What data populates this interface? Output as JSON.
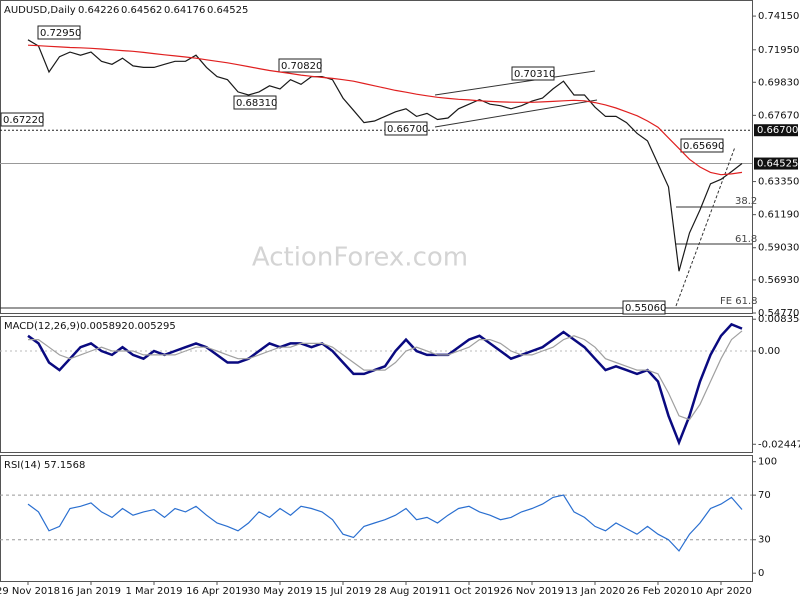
{
  "chart_data": [
    {
      "type": "line",
      "title": "AUDUSD,Daily",
      "last_bar": {
        "open": 0.64226,
        "high": 0.64562,
        "low": 0.64176
      },
      "watermark": "ActionForex.com",
      "categories": [
        "29 Nov 2018",
        null,
        null,
        null,
        null,
        null,
        "16 Jan 2019",
        null,
        null,
        null,
        null,
        null,
        "1 Mar 2019",
        null,
        null,
        null,
        null,
        null,
        "16 Apr 2019",
        null,
        null,
        null,
        null,
        null,
        "30 May 2019",
        null,
        null,
        null,
        null,
        null,
        "15 Jul 2019",
        null,
        null,
        null,
        null,
        null,
        "28 Aug 2019",
        null,
        null,
        null,
        null,
        null,
        "11 Oct 2019",
        null,
        null,
        null,
        null,
        null,
        "26 Nov 2019",
        null,
        null,
        null,
        null,
        null,
        "13 Jan 2020",
        null,
        null,
        null,
        null,
        null,
        "26 Feb 2020",
        null,
        null,
        null,
        null,
        null,
        "10 Apr 2020",
        null,
        null
      ],
      "series": [
        {
          "name": "AUDUSD",
          "color": "#1a1a1a",
          "values": [
            0.726,
            0.722,
            0.705,
            0.715,
            0.718,
            0.716,
            0.718,
            0.712,
            0.71,
            0.714,
            0.709,
            0.708,
            0.708,
            0.71,
            0.712,
            0.712,
            0.716,
            0.708,
            0.702,
            0.7,
            0.692,
            0.69,
            0.692,
            0.696,
            0.694,
            0.7,
            0.697,
            0.702,
            0.702,
            0.7,
            0.688,
            0.68,
            0.672,
            0.673,
            0.676,
            0.679,
            0.681,
            0.676,
            0.678,
            0.674,
            0.675,
            0.681,
            0.684,
            0.687,
            0.684,
            0.683,
            0.681,
            0.683,
            0.686,
            0.688,
            0.694,
            0.699,
            0.69,
            0.69,
            0.682,
            0.676,
            0.676,
            0.672,
            0.665,
            0.66,
            0.645,
            0.63,
            0.575,
            0.6,
            0.615,
            0.632,
            0.635,
            0.64,
            0.64525
          ]
        },
        {
          "name": "MA",
          "color": "#e02020",
          "values": [
            0.7225,
            0.7222,
            0.7218,
            0.7214,
            0.721,
            0.7208,
            0.7205,
            0.72,
            0.7195,
            0.719,
            0.7185,
            0.7178,
            0.717,
            0.7162,
            0.7155,
            0.7148,
            0.714,
            0.713,
            0.712,
            0.711,
            0.7098,
            0.7085,
            0.7072,
            0.706,
            0.705,
            0.704,
            0.703,
            0.7022,
            0.7015,
            0.7008,
            0.7,
            0.699,
            0.6975,
            0.696,
            0.6945,
            0.693,
            0.6918,
            0.6905,
            0.6895,
            0.6885,
            0.6878,
            0.6872,
            0.6868,
            0.6862,
            0.6858,
            0.6855,
            0.6853,
            0.6852,
            0.6852,
            0.6855,
            0.6858,
            0.6862,
            0.6865,
            0.6862,
            0.685,
            0.6835,
            0.6815,
            0.679,
            0.6765,
            0.673,
            0.669,
            0.662,
            0.655,
            0.648,
            0.643,
            0.6395,
            0.638,
            0.6385,
            0.6395
          ]
        }
      ],
      "ylim": [
        0.5477,
        0.752
      ],
      "yticks": [
        {
          "value": 0.7415,
          "label": "0.74150"
        },
        {
          "value": 0.7195,
          "label": "0.71950"
        },
        {
          "value": 0.6983,
          "label": "0.69830"
        },
        {
          "value": 0.6767,
          "label": "0.67670"
        },
        {
          "value": 0.6335,
          "label": "0.63350"
        },
        {
          "value": 0.6119,
          "label": "0.61190"
        },
        {
          "value": 0.5903,
          "label": "0.59030"
        },
        {
          "value": 0.5693,
          "label": "0.56930"
        },
        {
          "value": 0.5477,
          "label": "0.54770"
        }
      ],
      "markers": [
        {
          "value": 0.667,
          "label": "0.66700"
        }
      ],
      "annotations": [
        "0.72950",
        "0.67220",
        "0.70820",
        "0.68310",
        "0.66700",
        "0.70310",
        "0.65690",
        "0.55060",
        "38.2",
        "61.8",
        "FE 61.8"
      ]
    },
    {
      "type": "line",
      "title": "MACD(12,26,9)",
      "series": [
        {
          "name": "MACD",
          "color": "#0a0a80",
          "values": [
            0.004,
            0.002,
            -0.003,
            -0.005,
            -0.002,
            0.001,
            0.002,
            0.0,
            -0.001,
            0.001,
            -0.001,
            -0.002,
            0.0,
            -0.001,
            0.0,
            0.001,
            0.002,
            0.001,
            -0.001,
            -0.003,
            -0.003,
            -0.002,
            0.0,
            0.002,
            0.001,
            0.002,
            0.002,
            0.001,
            0.002,
            0.0,
            -0.003,
            -0.006,
            -0.006,
            -0.005,
            -0.004,
            0.0,
            0.003,
            0.0,
            -0.001,
            -0.001,
            -0.001,
            0.001,
            0.003,
            0.004,
            0.002,
            0.0,
            -0.002,
            -0.001,
            0.0,
            0.001,
            0.003,
            0.005,
            0.003,
            0.001,
            -0.002,
            -0.005,
            -0.004,
            -0.005,
            -0.006,
            -0.005,
            -0.008,
            -0.017,
            -0.024,
            -0.017,
            -0.008,
            -0.001,
            0.004,
            0.007,
            0.005892
          ]
        },
        {
          "name": "Signal",
          "color": "#a0a0a0",
          "values": [
            0.003,
            0.003,
            0.001,
            -0.001,
            -0.002,
            -0.001,
            0.0,
            0.001,
            0.0,
            0.0,
            0.0,
            -0.001,
            -0.001,
            -0.001,
            -0.001,
            0.0,
            0.001,
            0.001,
            0.0,
            -0.001,
            -0.002,
            -0.002,
            -0.001,
            0.0,
            0.001,
            0.001,
            0.002,
            0.002,
            0.002,
            0.001,
            -0.001,
            -0.003,
            -0.005,
            -0.005,
            -0.005,
            -0.003,
            0.0,
            0.001,
            0.0,
            -0.001,
            -0.001,
            0.0,
            0.001,
            0.003,
            0.003,
            0.002,
            0.0,
            -0.001,
            -0.001,
            0.0,
            0.001,
            0.003,
            0.004,
            0.003,
            0.001,
            -0.002,
            -0.003,
            -0.004,
            -0.005,
            -0.005,
            -0.006,
            -0.011,
            -0.017,
            -0.018,
            -0.014,
            -0.008,
            -0.002,
            0.003,
            0.005295
          ]
        }
      ],
      "ylim": [
        -0.0265,
        0.0092
      ],
      "yticks": [
        0.008354,
        {
          "value": 0,
          "label": "0.00"
        },
        -0.02447
      ]
    },
    {
      "type": "line",
      "title": "RSI(14)",
      "series": [
        {
          "name": "RSI",
          "color": "#2a6fd0",
          "values": [
            62,
            55,
            38,
            42,
            58,
            60,
            63,
            55,
            50,
            58,
            52,
            55,
            57,
            50,
            58,
            55,
            60,
            52,
            45,
            42,
            38,
            45,
            55,
            50,
            58,
            52,
            60,
            58,
            55,
            48,
            35,
            32,
            42,
            45,
            48,
            52,
            58,
            48,
            50,
            45,
            52,
            58,
            60,
            55,
            52,
            48,
            50,
            55,
            58,
            62,
            68,
            70,
            55,
            50,
            42,
            38,
            45,
            40,
            35,
            42,
            35,
            30,
            20,
            35,
            45,
            58,
            62,
            68,
            57.1568
          ]
        }
      ],
      "ylim": [
        -7,
        106
      ],
      "yticks": [
        100,
        70,
        30,
        0
      ],
      "dashed": [
        70,
        30
      ]
    }
  ]
}
